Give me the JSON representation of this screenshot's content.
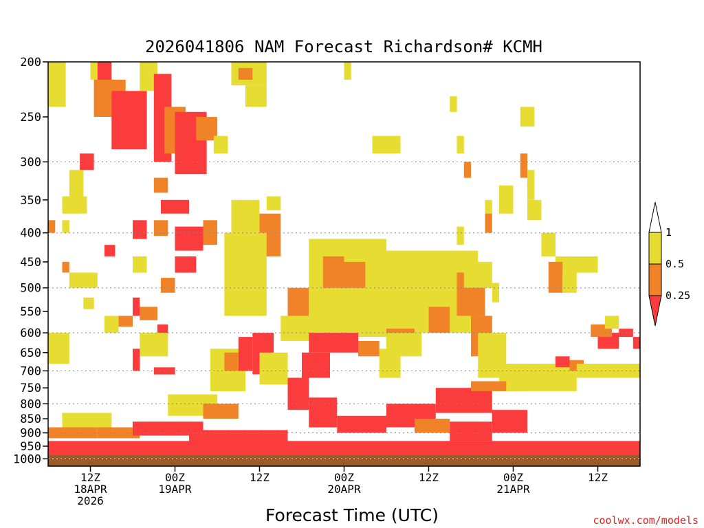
{
  "chart_data": {
    "type": "heatmap",
    "title": "2026041806 NAM Forecast Richardson# KCMH",
    "xlabel": "Forecast Time (UTC)",
    "ylabel": "",
    "credit": "coolwx.com/models",
    "y_scale": "pressure (hPa), reversed",
    "ylim": [
      1030,
      200
    ],
    "xlim_hours": [
      0,
      84
    ],
    "yticks": [
      200,
      250,
      300,
      350,
      400,
      450,
      500,
      550,
      600,
      650,
      700,
      750,
      800,
      850,
      900,
      950,
      1000
    ],
    "gridlines_hpa": [
      300,
      400,
      500,
      600,
      700,
      800,
      900,
      1000
    ],
    "grid": "dotted, horizontal",
    "xticks": [
      {
        "hour": 6,
        "lines": [
          "12Z",
          "18APR",
          "2026"
        ]
      },
      {
        "hour": 18,
        "lines": [
          "00Z",
          "19APR"
        ]
      },
      {
        "hour": 30,
        "lines": [
          "12Z"
        ]
      },
      {
        "hour": 42,
        "lines": [
          "00Z",
          "20APR"
        ]
      },
      {
        "hour": 54,
        "lines": [
          "12Z"
        ]
      },
      {
        "hour": 66,
        "lines": [
          "00Z",
          "21APR"
        ]
      },
      {
        "hour": 78,
        "lines": [
          "12Z"
        ]
      }
    ],
    "legend": {
      "position": "right",
      "bins": [
        {
          "range": "> 1",
          "color": "#ffffff"
        },
        {
          "range": "0.5 - 1",
          "color": "#e6dc32"
        },
        {
          "range": "0.25 - 0.5",
          "color": "#f08228"
        },
        {
          "range": "< 0.25",
          "color": "#fa3c3c"
        }
      ],
      "labels": [
        "1",
        "0.5",
        "0.25"
      ]
    },
    "surface": {
      "color": "#9a5a2a",
      "label_pressure_hpa": 985
    },
    "color_map": {
      "Y": "#e6dc32",
      "O": "#f08228",
      "R": "#fa3c3c"
    },
    "regions": [
      {
        "c": "Y",
        "t": [
          0,
          2.5
        ],
        "p": [
          200,
          240
        ]
      },
      {
        "c": "Y",
        "t": [
          6,
          7
        ],
        "p": [
          200,
          215
        ]
      },
      {
        "c": "R",
        "t": [
          7,
          9
        ],
        "p": [
          200,
          230
        ]
      },
      {
        "c": "O",
        "t": [
          6.5,
          11
        ],
        "p": [
          215,
          250
        ]
      },
      {
        "c": "R",
        "t": [
          9,
          14
        ],
        "p": [
          225,
          285
        ]
      },
      {
        "c": "Y",
        "t": [
          13,
          15.5
        ],
        "p": [
          200,
          225
        ]
      },
      {
        "c": "R",
        "t": [
          15,
          17.5
        ],
        "p": [
          210,
          300
        ]
      },
      {
        "c": "O",
        "t": [
          16.5,
          19.5
        ],
        "p": [
          240,
          290
        ]
      },
      {
        "c": "R",
        "t": [
          18,
          22.5
        ],
        "p": [
          245,
          315
        ]
      },
      {
        "c": "O",
        "t": [
          21,
          24
        ],
        "p": [
          250,
          275
        ]
      },
      {
        "c": "Y",
        "t": [
          23.5,
          25.5
        ],
        "p": [
          270,
          290
        ]
      },
      {
        "c": "R",
        "t": [
          4.5,
          6.5
        ],
        "p": [
          290,
          310
        ]
      },
      {
        "c": "Y",
        "t": [
          3,
          5
        ],
        "p": [
          310,
          350
        ]
      },
      {
        "c": "Y",
        "t": [
          2,
          5.5
        ],
        "p": [
          345,
          370
        ]
      },
      {
        "c": "R",
        "t": [
          16,
          20
        ],
        "p": [
          350,
          370
        ]
      },
      {
        "c": "O",
        "t": [
          15,
          17
        ],
        "p": [
          380,
          405
        ]
      },
      {
        "c": "R",
        "t": [
          18,
          22
        ],
        "p": [
          390,
          430
        ]
      },
      {
        "c": "O",
        "t": [
          22,
          24
        ],
        "p": [
          380,
          420
        ]
      },
      {
        "c": "Y",
        "t": [
          26,
          30
        ],
        "p": [
          350,
          430
        ]
      },
      {
        "c": "O",
        "t": [
          30,
          33
        ],
        "p": [
          370,
          440
        ]
      },
      {
        "c": "Y",
        "t": [
          31,
          33
        ],
        "p": [
          345,
          365
        ]
      },
      {
        "c": "R",
        "t": [
          18,
          21
        ],
        "p": [
          440,
          470
        ]
      },
      {
        "c": "O",
        "t": [
          16,
          18
        ],
        "p": [
          480,
          510
        ]
      },
      {
        "c": "Y",
        "t": [
          3,
          7
        ],
        "p": [
          470,
          500
        ]
      },
      {
        "c": "Y",
        "t": [
          5,
          6.5
        ],
        "p": [
          520,
          545
        ]
      },
      {
        "c": "R",
        "t": [
          12,
          13
        ],
        "p": [
          520,
          560
        ]
      },
      {
        "c": "O",
        "t": [
          13,
          15.5
        ],
        "p": [
          540,
          570
        ]
      },
      {
        "c": "R",
        "t": [
          15.5,
          17
        ],
        "p": [
          580,
          610
        ]
      },
      {
        "c": "Y",
        "t": [
          13,
          17
        ],
        "p": [
          600,
          660
        ]
      },
      {
        "c": "R",
        "t": [
          12,
          13
        ],
        "p": [
          640,
          700
        ]
      },
      {
        "c": "R",
        "t": [
          15,
          18
        ],
        "p": [
          690,
          710
        ]
      },
      {
        "c": "Y",
        "t": [
          0,
          3
        ],
        "p": [
          600,
          680
        ]
      },
      {
        "c": "Y",
        "t": [
          25,
          31
        ],
        "p": [
          400,
          560
        ]
      },
      {
        "c": "O",
        "t": [
          34,
          37
        ],
        "p": [
          500,
          590
        ]
      },
      {
        "c": "Y",
        "t": [
          33,
          38
        ],
        "p": [
          560,
          620
        ]
      },
      {
        "c": "Y",
        "t": [
          23,
          28
        ],
        "p": [
          640,
          760
        ]
      },
      {
        "c": "R",
        "t": [
          27,
          29
        ],
        "p": [
          610,
          700
        ]
      },
      {
        "c": "O",
        "t": [
          25,
          27
        ],
        "p": [
          650,
          700
        ]
      },
      {
        "c": "R",
        "t": [
          29,
          32
        ],
        "p": [
          600,
          710
        ]
      },
      {
        "c": "Y",
        "t": [
          30,
          34
        ],
        "p": [
          650,
          740
        ]
      },
      {
        "c": "Y",
        "t": [
          37,
          48
        ],
        "p": [
          410,
          610
        ]
      },
      {
        "c": "O",
        "t": [
          39,
          46
        ],
        "p": [
          440,
          500
        ]
      },
      {
        "c": "Y",
        "t": [
          42,
          46
        ],
        "p": [
          420,
          450
        ]
      },
      {
        "c": "Y",
        "t": [
          45,
          61
        ],
        "p": [
          430,
          600
        ]
      },
      {
        "c": "O",
        "t": [
          48,
          52
        ],
        "p": [
          590,
          620
        ]
      },
      {
        "c": "Y",
        "t": [
          48,
          53
        ],
        "p": [
          600,
          660
        ]
      },
      {
        "c": "O",
        "t": [
          54,
          57
        ],
        "p": [
          540,
          600
        ]
      },
      {
        "c": "O",
        "t": [
          58,
          62
        ],
        "p": [
          470,
          560
        ]
      },
      {
        "c": "Y",
        "t": [
          59,
          63
        ],
        "p": [
          450,
          500
        ]
      },
      {
        "c": "O",
        "t": [
          60,
          63
        ],
        "p": [
          560,
          660
        ]
      },
      {
        "c": "Y",
        "t": [
          61,
          65
        ],
        "p": [
          600,
          720
        ]
      },
      {
        "c": "Y",
        "t": [
          64,
          68
        ],
        "p": [
          680,
          760
        ]
      },
      {
        "c": "R",
        "t": [
          37,
          44
        ],
        "p": [
          600,
          650
        ]
      },
      {
        "c": "O",
        "t": [
          44,
          47
        ],
        "p": [
          620,
          660
        ]
      },
      {
        "c": "Y",
        "t": [
          47,
          50
        ],
        "p": [
          640,
          720
        ]
      },
      {
        "c": "R",
        "t": [
          36,
          40
        ],
        "p": [
          650,
          720
        ]
      },
      {
        "c": "R",
        "t": [
          34,
          37
        ],
        "p": [
          720,
          820
        ]
      },
      {
        "c": "R",
        "t": [
          37,
          41
        ],
        "p": [
          780,
          880
        ]
      },
      {
        "c": "R",
        "t": [
          41,
          48
        ],
        "p": [
          840,
          900
        ]
      },
      {
        "c": "R",
        "t": [
          48,
          55
        ],
        "p": [
          800,
          880
        ]
      },
      {
        "c": "R",
        "t": [
          55,
          63
        ],
        "p": [
          750,
          830
        ]
      },
      {
        "c": "O",
        "t": [
          60,
          66
        ],
        "p": [
          730,
          760
        ]
      },
      {
        "c": "R",
        "t": [
          63,
          68
        ],
        "p": [
          820,
          900
        ]
      },
      {
        "c": "O",
        "t": [
          52,
          57
        ],
        "p": [
          850,
          900
        ]
      },
      {
        "c": "R",
        "t": [
          57,
          63
        ],
        "p": [
          860,
          930
        ]
      },
      {
        "c": "R",
        "t": [
          0,
          84
        ],
        "p": [
          930,
          985
        ]
      },
      {
        "c": "R",
        "t": [
          20,
          34
        ],
        "p": [
          890,
          935
        ]
      },
      {
        "c": "O",
        "t": [
          0,
          7
        ],
        "p": [
          880,
          920
        ]
      },
      {
        "c": "Y",
        "t": [
          2,
          9
        ],
        "p": [
          830,
          880
        ]
      },
      {
        "c": "O",
        "t": [
          7,
          13
        ],
        "p": [
          880,
          920
        ]
      },
      {
        "c": "R",
        "t": [
          12,
          22
        ],
        "p": [
          860,
          910
        ]
      },
      {
        "c": "Y",
        "t": [
          17,
          24
        ],
        "p": [
          770,
          840
        ]
      },
      {
        "c": "O",
        "t": [
          22,
          27
        ],
        "p": [
          800,
          850
        ]
      },
      {
        "c": "Y",
        "t": [
          65,
          75
        ],
        "p": [
          680,
          760
        ]
      },
      {
        "c": "R",
        "t": [
          72,
          74
        ],
        "p": [
          660,
          690
        ]
      },
      {
        "c": "O",
        "t": [
          74,
          76
        ],
        "p": [
          670,
          700
        ]
      },
      {
        "c": "Y",
        "t": [
          75,
          84
        ],
        "p": [
          680,
          720
        ]
      },
      {
        "c": "R",
        "t": [
          78,
          81
        ],
        "p": [
          600,
          640
        ]
      },
      {
        "c": "O",
        "t": [
          77,
          80
        ],
        "p": [
          580,
          610
        ]
      },
      {
        "c": "R",
        "t": [
          81,
          83
        ],
        "p": [
          590,
          610
        ]
      },
      {
        "c": "R",
        "t": [
          83,
          84
        ],
        "p": [
          610,
          640
        ]
      },
      {
        "c": "Y",
        "t": [
          79,
          81
        ],
        "p": [
          560,
          590
        ]
      },
      {
        "c": "Y",
        "t": [
          72,
          78
        ],
        "p": [
          440,
          470
        ]
      },
      {
        "c": "O",
        "t": [
          71,
          73
        ],
        "p": [
          450,
          510
        ]
      },
      {
        "c": "Y",
        "t": [
          73,
          75
        ],
        "p": [
          470,
          510
        ]
      },
      {
        "c": "Y",
        "t": [
          70,
          72
        ],
        "p": [
          400,
          440
        ]
      },
      {
        "c": "Y",
        "t": [
          68,
          70
        ],
        "p": [
          350,
          380
        ]
      },
      {
        "c": "Y",
        "t": [
          64,
          66
        ],
        "p": [
          330,
          370
        ]
      },
      {
        "c": "O",
        "t": [
          67,
          68
        ],
        "p": [
          290,
          320
        ]
      },
      {
        "c": "Y",
        "t": [
          68,
          69
        ],
        "p": [
          310,
          350
        ]
      },
      {
        "c": "Y",
        "t": [
          67,
          69
        ],
        "p": [
          240,
          260
        ]
      },
      {
        "c": "Y",
        "t": [
          46,
          50
        ],
        "p": [
          270,
          290
        ]
      },
      {
        "c": "Y",
        "t": [
          26,
          31
        ],
        "p": [
          200,
          220
        ]
      },
      {
        "c": "O",
        "t": [
          27,
          29
        ],
        "p": [
          205,
          215
        ]
      },
      {
        "c": "Y",
        "t": [
          28,
          31
        ],
        "p": [
          220,
          240
        ]
      },
      {
        "c": "Y",
        "t": [
          42,
          43
        ],
        "p": [
          200,
          215
        ]
      },
      {
        "c": "Y",
        "t": [
          57,
          58
        ],
        "p": [
          230,
          245
        ]
      },
      {
        "c": "O",
        "t": [
          59,
          60
        ],
        "p": [
          300,
          320
        ]
      },
      {
        "c": "Y",
        "t": [
          58,
          59
        ],
        "p": [
          270,
          290
        ]
      },
      {
        "c": "Y",
        "t": [
          62,
          63
        ],
        "p": [
          350,
          370
        ]
      },
      {
        "c": "Y",
        "t": [
          58,
          59
        ],
        "p": [
          390,
          420
        ]
      },
      {
        "c": "O",
        "t": [
          62,
          63
        ],
        "p": [
          370,
          400
        ]
      },
      {
        "c": "Y",
        "t": [
          63,
          64
        ],
        "p": [
          490,
          530
        ]
      },
      {
        "c": "R",
        "t": [
          8,
          9.5
        ],
        "p": [
          420,
          440
        ]
      },
      {
        "c": "Y",
        "t": [
          8,
          10
        ],
        "p": [
          560,
          600
        ]
      },
      {
        "c": "O",
        "t": [
          10,
          12
        ],
        "p": [
          560,
          585
        ]
      },
      {
        "c": "Y",
        "t": [
          2,
          3
        ],
        "p": [
          380,
          400
        ]
      },
      {
        "c": "O",
        "t": [
          0,
          1
        ],
        "p": [
          380,
          400
        ]
      },
      {
        "c": "O",
        "t": [
          2,
          3
        ],
        "p": [
          450,
          470
        ]
      },
      {
        "c": "Y",
        "t": [
          12,
          14
        ],
        "p": [
          440,
          470
        ]
      },
      {
        "c": "R",
        "t": [
          12,
          14
        ],
        "p": [
          380,
          410
        ]
      },
      {
        "c": "O",
        "t": [
          15,
          17
        ],
        "p": [
          320,
          340
        ]
      }
    ]
  }
}
